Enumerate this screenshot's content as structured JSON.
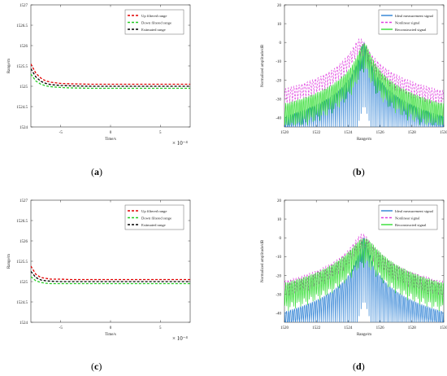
{
  "colors": {
    "red": "#e00000",
    "green": "#22cc22",
    "black": "#000000",
    "blue": "#2a7fd4",
    "magenta": "#e040e0",
    "lightgreen": "#33dd33"
  },
  "captions": [
    "(a)",
    "(b)",
    "(c)",
    "(d)"
  ],
  "chart_data": [
    {
      "id": "a",
      "type": "line",
      "xlabel": "Time/s",
      "ylabel": "Range/m",
      "exponent_label": "× 10⁻⁴",
      "xlim": [
        -8,
        8
      ],
      "ylim": [
        1524,
        1527
      ],
      "xticks": [
        -5,
        0,
        5
      ],
      "xtick_labels": [
        "-5",
        "0",
        "5"
      ],
      "yticks": [
        1524,
        1524.5,
        1525,
        1525.5,
        1526,
        1526.5,
        1527
      ],
      "ytick_labels": [
        "1524",
        "1524.5",
        "1525",
        "1525.5",
        "1526",
        "1526.5",
        "1527"
      ],
      "legend_position": "top-right",
      "series": [
        {
          "name": "Up filtered range",
          "color": "red",
          "dash": true,
          "x": [
            -8,
            -7.5,
            -7,
            -6.5,
            -6,
            -5,
            -4,
            -2,
            0,
            2,
            4,
            6,
            8
          ],
          "y": [
            1525.55,
            1525.32,
            1525.2,
            1525.13,
            1525.1,
            1525.07,
            1525.06,
            1525.05,
            1525.05,
            1525.05,
            1525.05,
            1525.05,
            1525.05
          ]
        },
        {
          "name": "Down filtered range",
          "color": "green",
          "dash": true,
          "x": [
            -8,
            -7.5,
            -7,
            -6.5,
            -6,
            -5,
            -4,
            -2,
            0,
            2,
            4,
            6,
            8
          ],
          "y": [
            1525.3,
            1525.13,
            1525.05,
            1525.01,
            1524.99,
            1524.97,
            1524.96,
            1524.95,
            1524.95,
            1524.95,
            1524.95,
            1524.95,
            1524.95
          ]
        },
        {
          "name": "Estimated range",
          "color": "black",
          "dash": true,
          "x": [
            -8,
            -7.5,
            -7,
            -6.5,
            -6,
            -5,
            -4,
            -2,
            0,
            2,
            4,
            6,
            8
          ],
          "y": [
            1525.43,
            1525.23,
            1525.12,
            1525.07,
            1525.04,
            1525.02,
            1525.01,
            1525.0,
            1525.0,
            1525.0,
            1525.0,
            1525.0,
            1525.0
          ]
        }
      ]
    },
    {
      "id": "b",
      "type": "line",
      "xlabel": "Range/m",
      "ylabel": "Normalized amplitude/dB",
      "xlim": [
        1520,
        1530
      ],
      "ylim": [
        -45,
        20
      ],
      "xticks": [
        1520,
        1522,
        1524,
        1526,
        1528,
        1530
      ],
      "xtick_labels": [
        "1520",
        "1522",
        "1524",
        "1526",
        "1528",
        "1530"
      ],
      "yticks": [
        -40,
        -30,
        -20,
        -10,
        0,
        10,
        20
      ],
      "ytick_labels": [
        "-40",
        "-30",
        "-20",
        "-10",
        "0",
        "10",
        "20"
      ],
      "legend_position": "top-right",
      "peak": 1525,
      "series": [
        {
          "name": "Ideal measurement signal",
          "color": "blue",
          "kind": "ideal",
          "width": 0.55,
          "floor": -45
        },
        {
          "name": "Nonlinear signal",
          "color": "magenta",
          "kind": "envelope",
          "center": 1524.75,
          "width": 0.9,
          "floor": -38,
          "dash": true
        },
        {
          "name": "Reconstructed signal",
          "color": "lightgreen",
          "kind": "sidelobes",
          "center": 1525.0,
          "width": 0.75,
          "floor": -44
        }
      ]
    },
    {
      "id": "c",
      "type": "line",
      "xlabel": "Time/s",
      "ylabel": "Range/m",
      "exponent_label": "× 10⁻⁴",
      "xlim": [
        -8,
        8
      ],
      "ylim": [
        1524,
        1527
      ],
      "xticks": [
        -5,
        0,
        5
      ],
      "xtick_labels": [
        "-5",
        "0",
        "5"
      ],
      "yticks": [
        1524,
        1524.5,
        1525,
        1525.5,
        1526,
        1526.5,
        1527
      ],
      "ytick_labels": [
        "1524",
        "1524.5",
        "1525",
        "1525.5",
        "1526",
        "1526.5",
        "1527"
      ],
      "legend_position": "top-right",
      "series": [
        {
          "name": "Up filtered range",
          "color": "red",
          "dash": true,
          "x": [
            -8,
            -7.5,
            -7,
            -6.5,
            -6,
            -5,
            -4,
            -2,
            0,
            2,
            4,
            6,
            8
          ],
          "y": [
            1525.38,
            1525.18,
            1525.1,
            1525.08,
            1525.06,
            1525.06,
            1525.05,
            1525.05,
            1525.05,
            1525.05,
            1525.05,
            1525.05,
            1525.05
          ]
        },
        {
          "name": "Down filtered range",
          "color": "green",
          "dash": true,
          "x": [
            -8,
            -7.5,
            -7,
            -6.5,
            -6,
            -5,
            -4,
            -2,
            0,
            2,
            4,
            6,
            8
          ],
          "y": [
            1525.12,
            1525.02,
            1524.98,
            1524.96,
            1524.95,
            1524.95,
            1524.95,
            1524.95,
            1524.95,
            1524.95,
            1524.95,
            1524.95,
            1524.95
          ]
        },
        {
          "name": "Estimated range",
          "color": "black",
          "dash": true,
          "x": [
            -8,
            -7.5,
            -7,
            -6.5,
            -6,
            -5,
            -4,
            -2,
            0,
            2,
            4,
            6,
            8
          ],
          "y": [
            1525.25,
            1525.1,
            1525.04,
            1525.02,
            1525.01,
            1525.0,
            1525.0,
            1525.0,
            1525.0,
            1525.0,
            1525.0,
            1525.0,
            1525.0
          ]
        }
      ]
    },
    {
      "id": "d",
      "type": "line",
      "xlabel": "Range/m",
      "ylabel": "Normalized amplitude/dB",
      "xlim": [
        1520,
        1530
      ],
      "ylim": [
        -45,
        20
      ],
      "xticks": [
        1520,
        1522,
        1524,
        1526,
        1528,
        1530
      ],
      "xtick_labels": [
        "1520",
        "1522",
        "1524",
        "1526",
        "1528",
        "1530"
      ],
      "yticks": [
        -40,
        -30,
        -20,
        -10,
        0,
        10,
        20
      ],
      "ytick_labels": [
        "-40",
        "-30",
        "-20",
        "-10",
        "0",
        "10",
        "20"
      ],
      "legend_position": "top-right",
      "peak": 1525,
      "series": [
        {
          "name": "Ideal measurement signal",
          "color": "blue",
          "kind": "ideal",
          "width": 0.55,
          "floor": -45
        },
        {
          "name": "Nonlinear signal",
          "color": "magenta",
          "kind": "envelope",
          "center": 1524.9,
          "width": 1.1,
          "floor": -36,
          "dash": true
        },
        {
          "name": "Reconstructed signal",
          "color": "lightgreen",
          "kind": "sidelobes",
          "center": 1525.0,
          "width": 1.6,
          "floor": -40
        }
      ]
    }
  ]
}
